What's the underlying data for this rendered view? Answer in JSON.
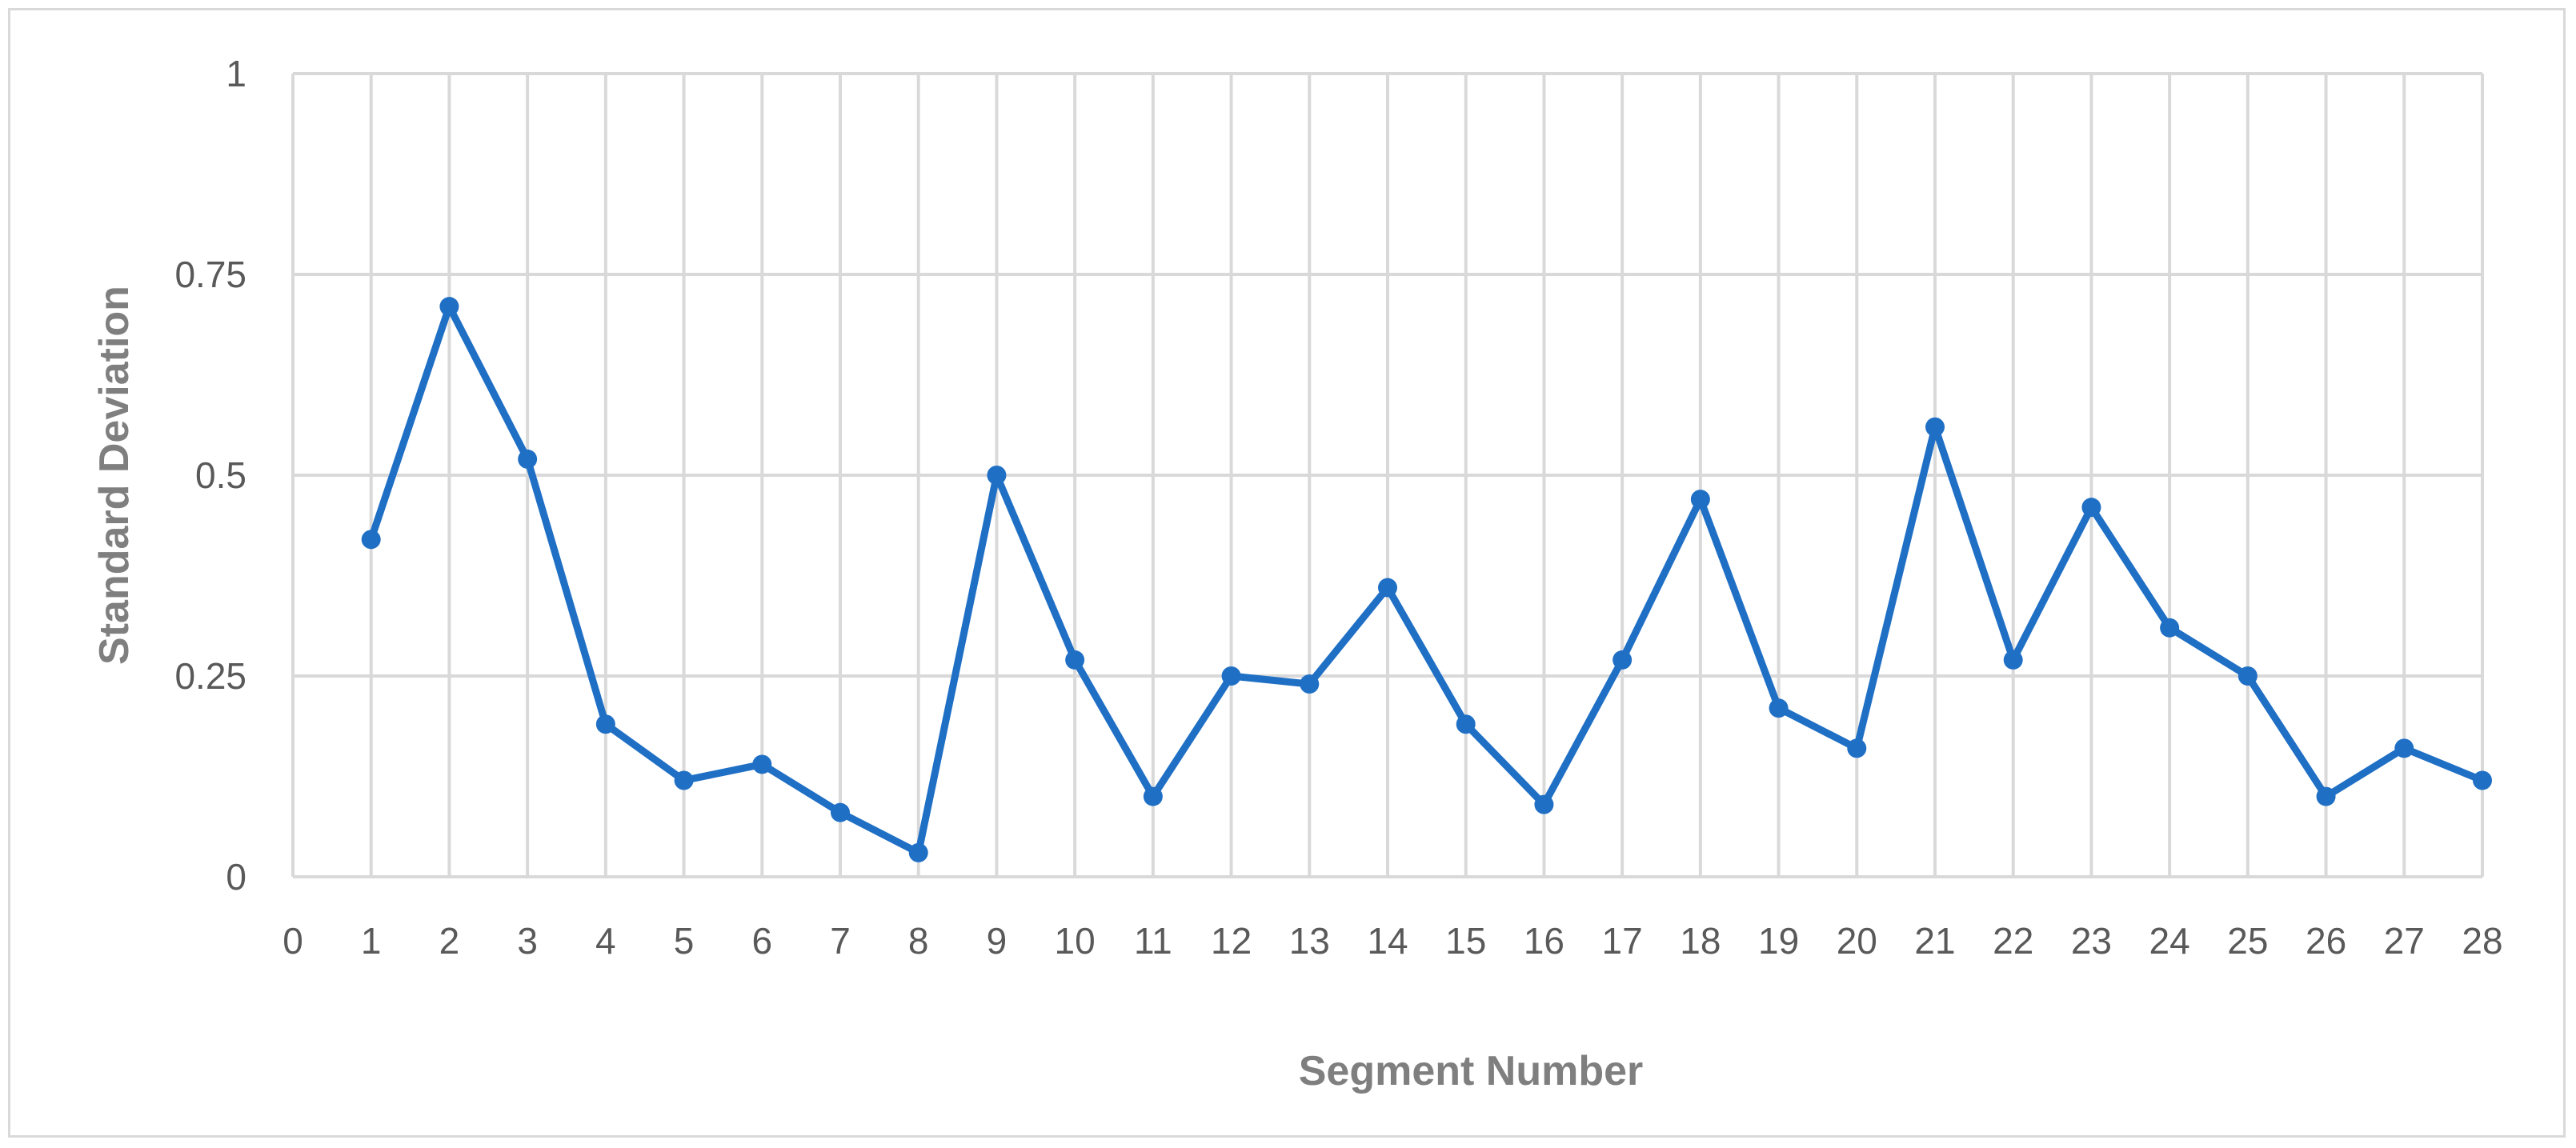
{
  "chart_data": {
    "type": "line",
    "title": "",
    "xlabel": "Segment Number",
    "ylabel": "Standard Deviation",
    "xlim": [
      0,
      28
    ],
    "ylim": [
      0,
      1
    ],
    "x_ticks": [
      "0",
      "1",
      "2",
      "3",
      "4",
      "5",
      "6",
      "7",
      "8",
      "9",
      "10",
      "11",
      "12",
      "13",
      "14",
      "15",
      "16",
      "17",
      "18",
      "19",
      "20",
      "21",
      "22",
      "23",
      "24",
      "25",
      "26",
      "27",
      "28"
    ],
    "y_ticks": [
      "0",
      "0.25",
      "0.5",
      "0.75",
      "1"
    ],
    "grid": true,
    "legend": "none",
    "series": [
      {
        "color": "#1f6fc5",
        "marker": "circle",
        "x": [
          1,
          2,
          3,
          4,
          5,
          6,
          7,
          8,
          9,
          10,
          11,
          12,
          13,
          14,
          15,
          16,
          17,
          18,
          19,
          20,
          21,
          22,
          23,
          24,
          25,
          26,
          27,
          28
        ],
        "y": [
          0.42,
          0.71,
          0.52,
          0.19,
          0.12,
          0.14,
          0.08,
          0.03,
          0.5,
          0.27,
          0.1,
          0.25,
          0.24,
          0.36,
          0.19,
          0.09,
          0.27,
          0.47,
          0.21,
          0.16,
          0.56,
          0.27,
          0.46,
          0.31,
          0.25,
          0.1,
          0.16,
          0.12
        ]
      }
    ],
    "colors": {
      "line": "#1f6fc5",
      "grid": "#d9d9d9",
      "tick_text": "#595959",
      "axis_title": "#7f7f7f"
    }
  }
}
